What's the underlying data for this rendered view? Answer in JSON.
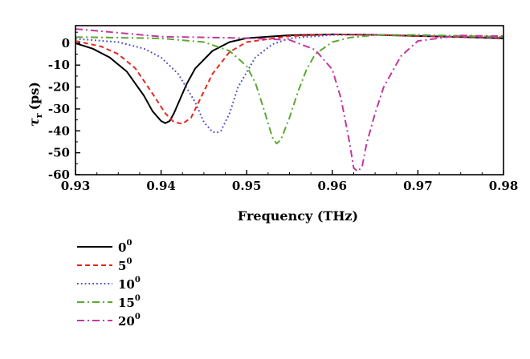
{
  "chart_data": {
    "type": "line",
    "title": "",
    "xlabel": "Frequency (THz)",
    "ylabel_symbol": "τ",
    "ylabel_subscript": "r",
    "ylabel_unit": "(ps)",
    "xlim": [
      0.93,
      0.98
    ],
    "ylim": [
      -60,
      8
    ],
    "x_ticks": [
      "0.93",
      "0.94",
      "0.95",
      "0.96",
      "0.97",
      "0.98"
    ],
    "y_ticks": [
      "0",
      "-10",
      "-20",
      "-30",
      "-40",
      "-50",
      "-60"
    ],
    "grid": false,
    "legend_position": "below-left",
    "series": [
      {
        "name": "0",
        "sup": "0",
        "color": "#000000",
        "dash": "solid",
        "x": [
          0.93,
          0.932,
          0.934,
          0.936,
          0.938,
          0.939,
          0.94,
          0.9405,
          0.941,
          0.9415,
          0.942,
          0.943,
          0.944,
          0.946,
          0.948,
          0.95,
          0.955,
          0.96,
          0.965,
          0.97,
          0.975,
          0.98
        ],
        "y": [
          0.0,
          -2.5,
          -6.5,
          -13,
          -24,
          -31,
          -35.5,
          -36.5,
          -35.5,
          -32,
          -27.5,
          -18.5,
          -11.5,
          -3.5,
          0.5,
          2.3,
          3.6,
          4.0,
          3.8,
          3.3,
          2.8,
          2.2
        ]
      },
      {
        "name": "5",
        "sup": "0",
        "color": "#e8261f",
        "dash": "dashed",
        "x": [
          0.93,
          0.933,
          0.935,
          0.937,
          0.939,
          0.9405,
          0.9415,
          0.9425,
          0.9435,
          0.9445,
          0.946,
          0.948,
          0.95,
          0.955,
          0.96,
          0.965,
          0.97,
          0.98
        ],
        "y": [
          1.0,
          -1.5,
          -5,
          -11.5,
          -23,
          -32,
          -36,
          -36.8,
          -34,
          -26,
          -14,
          -4,
          0.5,
          3.2,
          4.0,
          3.8,
          3.3,
          2.4
        ]
      },
      {
        "name": "10",
        "sup": "0",
        "color": "#4d4dc8",
        "dash": "dotted",
        "x": [
          0.93,
          0.935,
          0.938,
          0.94,
          0.942,
          0.944,
          0.945,
          0.946,
          0.9465,
          0.947,
          0.948,
          0.949,
          0.951,
          0.953,
          0.955,
          0.96,
          0.965,
          0.97,
          0.98
        ],
        "y": [
          2.0,
          0.5,
          -2.5,
          -6.5,
          -14,
          -27,
          -36,
          -40.5,
          -40.8,
          -40,
          -32,
          -20,
          -6.5,
          -0.5,
          2.2,
          3.8,
          3.9,
          3.5,
          2.6
        ]
      },
      {
        "name": "15",
        "sup": "0",
        "color": "#5aa832",
        "dash": "dashdot",
        "x": [
          0.93,
          0.94,
          0.945,
          0.948,
          0.95,
          0.951,
          0.952,
          0.953,
          0.9535,
          0.954,
          0.955,
          0.956,
          0.957,
          0.958,
          0.96,
          0.962,
          0.965,
          0.97,
          0.98
        ],
        "y": [
          2.8,
          2.2,
          0.5,
          -3.5,
          -10.5,
          -18,
          -30,
          -43,
          -45.8,
          -44,
          -34,
          -22,
          -12,
          -5,
          0.5,
          2.5,
          3.7,
          3.8,
          2.9
        ]
      },
      {
        "name": "20",
        "sup": "0",
        "color": "#c4379e",
        "dash": "dashdot",
        "x": [
          0.93,
          0.94,
          0.95,
          0.955,
          0.958,
          0.96,
          0.961,
          0.962,
          0.9625,
          0.963,
          0.9635,
          0.964,
          0.965,
          0.966,
          0.968,
          0.97,
          0.975,
          0.98
        ],
        "y": [
          6.5,
          3.0,
          2.3,
          1.5,
          -3,
          -12,
          -25,
          -45,
          -57,
          -58.5,
          -56,
          -46,
          -32,
          -20,
          -6,
          1,
          3.5,
          3.2
        ]
      }
    ]
  }
}
